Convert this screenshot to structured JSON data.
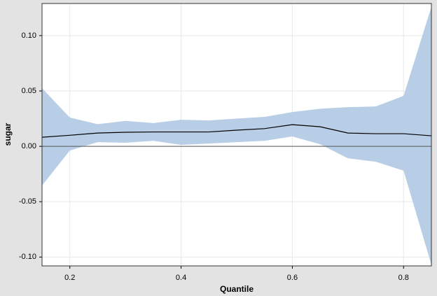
{
  "chart_data": {
    "type": "line",
    "xlabel": "Quantile",
    "ylabel": "sugar",
    "x": [
      0.15,
      0.2,
      0.25,
      0.3,
      0.35,
      0.4,
      0.45,
      0.5,
      0.55,
      0.6,
      0.65,
      0.7,
      0.75,
      0.8,
      0.85
    ],
    "values": [
      0.0082,
      0.01,
      0.012,
      0.0127,
      0.013,
      0.013,
      0.013,
      0.0146,
      0.016,
      0.0196,
      0.0177,
      0.012,
      0.0114,
      0.0114,
      0.0095
    ],
    "upper": [
      0.0525,
      0.026,
      0.02,
      0.023,
      0.021,
      0.024,
      0.0234,
      0.025,
      0.0266,
      0.031,
      0.034,
      0.0354,
      0.036,
      0.0456,
      0.126
    ],
    "lower": [
      -0.0354,
      -0.0038,
      0.0038,
      0.0032,
      0.005,
      0.0013,
      0.0025,
      0.0038,
      0.005,
      0.0089,
      0.0019,
      -0.0108,
      -0.0139,
      -0.022,
      -0.107
    ],
    "color": "#000000",
    "band_color": "#b8cde6",
    "hline": 0,
    "xlim": [
      0.15,
      0.85
    ],
    "ylim": [
      -0.108,
      0.129
    ],
    "xticks": [
      0.2,
      0.4,
      0.6,
      0.8
    ],
    "yticks": [
      {
        "value": 0.1,
        "label": "0.10"
      },
      {
        "value": 0.05,
        "label": "0.05"
      },
      {
        "value": 0,
        "label": "0.00"
      },
      {
        "value": -0.05,
        "label": "-0.05"
      },
      {
        "value": -0.1,
        "label": "-0.10"
      }
    ],
    "grid": true
  }
}
